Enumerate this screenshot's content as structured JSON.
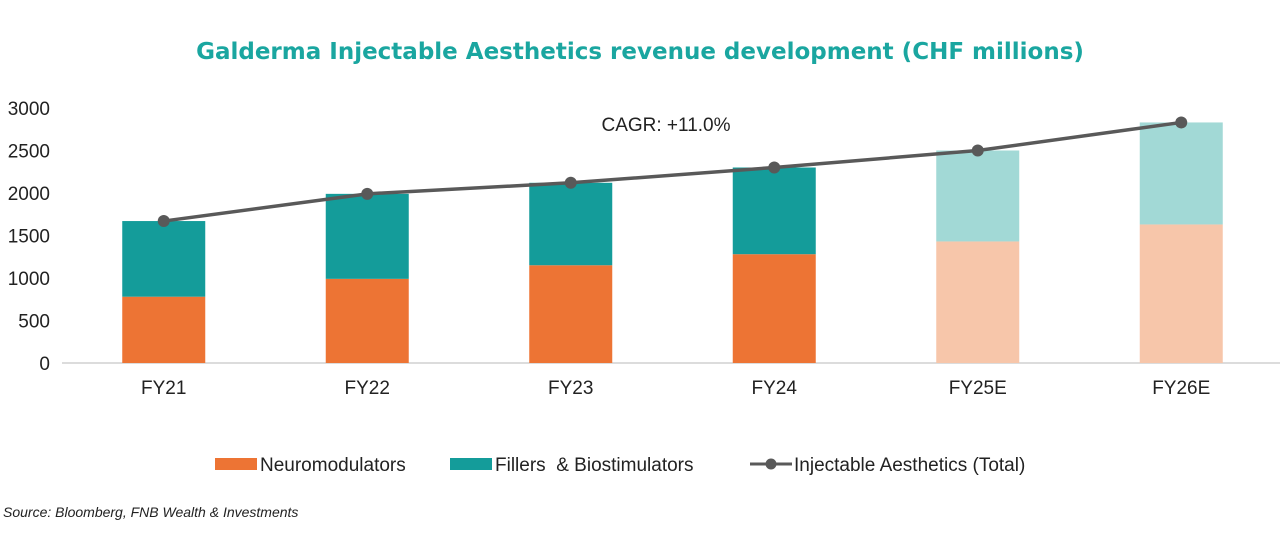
{
  "chart_data": {
    "type": "bar",
    "title": "Galderma Injectable Aesthetics revenue development (CHF millions)",
    "categories": [
      "FY21",
      "FY22",
      "FY23",
      "FY24",
      "FY25E",
      "FY26E"
    ],
    "estimate_categories": [
      "FY25E",
      "FY26E"
    ],
    "series": [
      {
        "name": "Neuromodulators",
        "kind": "stacked-bar",
        "values": [
          780,
          990,
          1150,
          1280,
          1430,
          1630
        ],
        "color": "#ed7434",
        "estimate_color": "#f7c6aa"
      },
      {
        "name": "Fillers  & Biostimulators",
        "kind": "stacked-bar",
        "values": [
          890,
          1000,
          970,
          1020,
          1070,
          1200
        ],
        "color": "#149c9a",
        "estimate_color": "#a2d9d6"
      },
      {
        "name": "Injectable Aesthetics (Total)",
        "kind": "line",
        "values": [
          1670,
          1990,
          2120,
          2300,
          2500,
          2830
        ],
        "color": "#595959"
      }
    ],
    "ylim": [
      0,
      3000
    ],
    "yticks": [
      "3000",
      "2500",
      "2000",
      "1500",
      "1000",
      "500",
      "0"
    ],
    "annotation": "CAGR: +11.0%",
    "legend_position": "bottom",
    "grid": false
  },
  "source": "Source: Bloomberg, FNB Wealth & Investments"
}
